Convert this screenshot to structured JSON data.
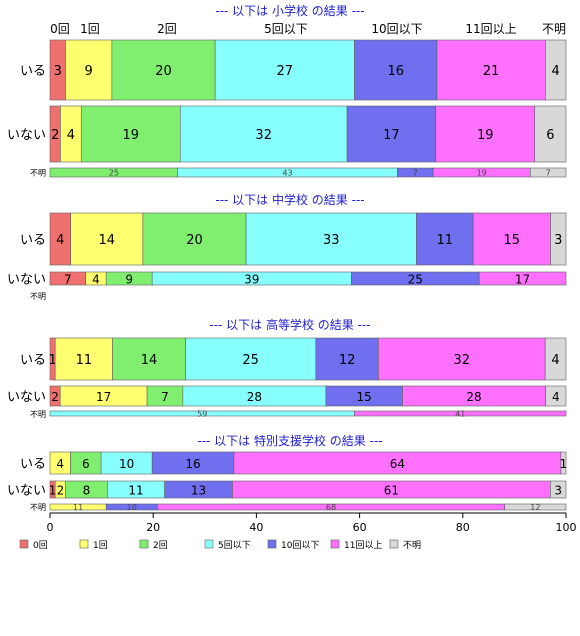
{
  "chart_data": {
    "type": "bar",
    "orientation": "horizontal",
    "stacked": true,
    "normalized": true,
    "xlim": [
      0,
      100
    ],
    "x_ticks": [
      0,
      20,
      40,
      60,
      80,
      100
    ],
    "colors": [
      "#f07070",
      "#ffff70",
      "#80ef70",
      "#88ffff",
      "#6f6ff0",
      "#ff70ff",
      "#d8d8d8"
    ],
    "categories": [
      "0回",
      "1回",
      "2回",
      "5回以下",
      "10回以下",
      "11回以上",
      "不明"
    ],
    "legend": {
      "placement": "bottom",
      "labels": [
        "0回",
        "1回",
        "2回",
        "5回以下",
        "10回以下",
        "11回以上",
        "不明"
      ]
    },
    "panels": [
      {
        "title": "--- 以下は 小学校 の結果 ---",
        "rows": [
          {
            "label": "いる",
            "values": [
              3,
              9,
              20,
              27,
              16,
              21,
              4
            ]
          },
          {
            "label": "いない",
            "values": [
              2,
              4,
              19,
              32,
              17,
              19,
              6
            ]
          },
          {
            "label": "不明",
            "values": [
              0,
              0,
              25,
              43,
              7,
              19,
              7
            ]
          }
        ]
      },
      {
        "title": "--- 以下は 中学校 の結果 ---",
        "rows": [
          {
            "label": "いる",
            "values": [
              4,
              14,
              20,
              33,
              11,
              15,
              3
            ]
          },
          {
            "label": "いない",
            "values": [
              7,
              4,
              9,
              39,
              25,
              17,
              0
            ]
          },
          {
            "label": "不明",
            "values": [
              0,
              0,
              0,
              0,
              0,
              0,
              0
            ]
          }
        ]
      },
      {
        "title": "--- 以下は 高等学校 の結果 ---",
        "rows": [
          {
            "label": "いる",
            "values": [
              1,
              11,
              14,
              25,
              12,
              32,
              4
            ]
          },
          {
            "label": "いない",
            "values": [
              2,
              17,
              7,
              28,
              15,
              28,
              4
            ]
          },
          {
            "label": "不明",
            "values": [
              0,
              0,
              0,
              59,
              0,
              41,
              0
            ]
          }
        ]
      },
      {
        "title": "--- 以下は 特別支援学校 の結果 ---",
        "rows": [
          {
            "label": "いる",
            "values": [
              0,
              4,
              6,
              10,
              16,
              64,
              1
            ]
          },
          {
            "label": "いない",
            "values": [
              1,
              2,
              8,
              11,
              13,
              61,
              3
            ]
          },
          {
            "label": "不明",
            "values": [
              0,
              11,
              0,
              0,
              10,
              68,
              12
            ]
          }
        ]
      }
    ]
  }
}
